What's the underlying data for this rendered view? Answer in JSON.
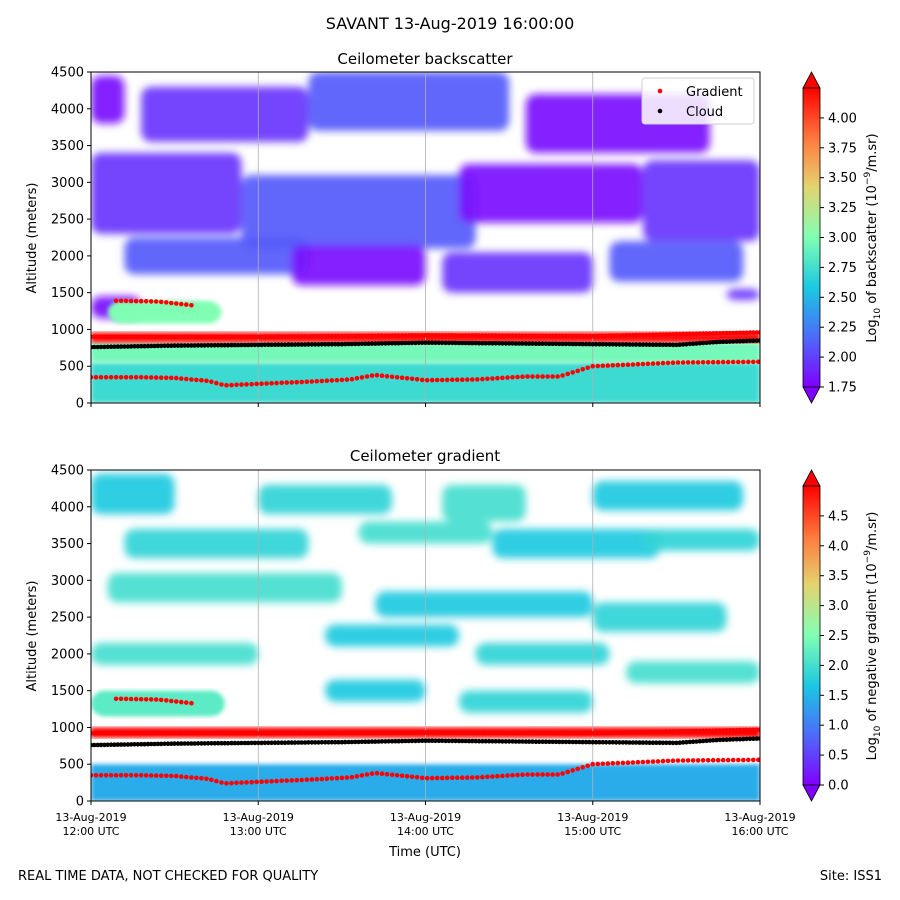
{
  "suptitle": "SAVANT 13-Aug-2019 16:00:00",
  "footer": {
    "quality_note": "REAL TIME DATA, NOT CHECKED FOR QUALITY",
    "site": "Site: ISS1"
  },
  "colors": {
    "gradient_marker": "#ff0000",
    "cloud_marker": "#000000",
    "no_data": "#ffffff",
    "grid": "#b0b0b0"
  },
  "chart_data": [
    {
      "type": "heatmap",
      "title": "Ceilometer backscatter",
      "xlabel": "",
      "ylabel": "Altitude (meters)",
      "ylim": [
        0,
        4500
      ],
      "y_ticks": [
        "0",
        "500",
        "1000",
        "1500",
        "2000",
        "2500",
        "3000",
        "3500",
        "4000",
        "4500"
      ],
      "x_range_utc": [
        "12:00",
        "16:00"
      ],
      "x_ticks": [],
      "grid": true,
      "colormap": "rainbow",
      "colorbar": {
        "label_prefix": "Log",
        "label_sub": "10",
        "label_mid": " of backscatter (10",
        "label_sup": "−9",
        "label_suffix": "/m.sr)",
        "range": [
          1.75,
          4.25
        ],
        "ticks": [
          "1.75",
          "2.00",
          "2.25",
          "2.50",
          "2.75",
          "3.00",
          "3.25",
          "3.50",
          "3.75",
          "4.00"
        ]
      },
      "legend": {
        "placement": "top-right",
        "entries": [
          {
            "name": "Gradient",
            "color": "#ff0000"
          },
          {
            "name": "Cloud",
            "color": "#000000"
          }
        ]
      },
      "layers": [
        {
          "name": "aerosol layer",
          "t": [
            0.0,
            4.0
          ],
          "alt": [
            0,
            550
          ],
          "value": 2.72
        },
        {
          "name": "boundary layer",
          "t": [
            0.0,
            4.0
          ],
          "alt": [
            550,
            820
          ],
          "value": 2.95
        },
        {
          "name": "mixed layer top",
          "t": [
            0.0,
            4.0
          ],
          "alt": [
            820,
            960
          ],
          "value": 4.2
        },
        {
          "name": "residual layer",
          "t": [
            0.1,
            0.78
          ],
          "alt": [
            1080,
            1390
          ],
          "value": 3.0
        }
      ],
      "haze_patches": [
        {
          "t": [
            0.0,
            0.2
          ],
          "alt": [
            3800,
            4450
          ]
        },
        {
          "t": [
            0.3,
            1.3
          ],
          "alt": [
            3550,
            4300
          ]
        },
        {
          "t": [
            1.3,
            2.5
          ],
          "alt": [
            3700,
            4500
          ]
        },
        {
          "t": [
            2.6,
            3.7
          ],
          "alt": [
            3400,
            4200
          ]
        },
        {
          "t": [
            0.0,
            0.9
          ],
          "alt": [
            2300,
            3400
          ]
        },
        {
          "t": [
            0.9,
            2.3
          ],
          "alt": [
            2100,
            3100
          ]
        },
        {
          "t": [
            2.2,
            3.3
          ],
          "alt": [
            2450,
            3250
          ]
        },
        {
          "t": [
            3.3,
            4.0
          ],
          "alt": [
            2200,
            3300
          ]
        },
        {
          "t": [
            0.2,
            1.3
          ],
          "alt": [
            1750,
            2250
          ]
        },
        {
          "t": [
            1.2,
            2.0
          ],
          "alt": [
            1600,
            2150
          ]
        },
        {
          "t": [
            2.1,
            3.0
          ],
          "alt": [
            1500,
            2050
          ]
        },
        {
          "t": [
            3.1,
            3.9
          ],
          "alt": [
            1650,
            2200
          ]
        },
        {
          "t": [
            0.0,
            0.3
          ],
          "alt": [
            1150,
            1450
          ]
        },
        {
          "t": [
            3.8,
            4.0
          ],
          "alt": [
            1400,
            1550
          ]
        }
      ],
      "haze_value": 1.8,
      "cloud_base": {
        "t": [
          0.0,
          0.5,
          1.0,
          1.5,
          2.0,
          2.5,
          3.0,
          3.5,
          3.75,
          4.0
        ],
        "alt": [
          760,
          780,
          790,
          800,
          820,
          810,
          800,
          790,
          830,
          850
        ]
      },
      "gradient_upper": {
        "t": [
          0.0,
          1.0,
          2.0,
          3.0,
          4.0
        ],
        "alt": [
          900,
          900,
          920,
          910,
          960
        ]
      },
      "gradient_lower": {
        "t": [
          0.0,
          0.3,
          0.5,
          0.7,
          0.8,
          1.0,
          1.3,
          1.55,
          1.7,
          2.0,
          2.3,
          2.6,
          2.8,
          3.0,
          3.5,
          4.0
        ],
        "alt": [
          350,
          350,
          340,
          300,
          240,
          260,
          290,
          320,
          380,
          310,
          320,
          360,
          360,
          500,
          550,
          560
        ]
      },
      "gradient_residual": {
        "t": [
          0.15,
          0.4,
          0.6
        ],
        "alt": [
          1390,
          1380,
          1330
        ]
      }
    },
    {
      "type": "heatmap",
      "title": "Ceilometer gradient",
      "xlabel": "Time (UTC)",
      "ylabel": "Altitude (meters)",
      "ylim": [
        0,
        4500
      ],
      "y_ticks": [
        "0",
        "500",
        "1000",
        "1500",
        "2000",
        "2500",
        "3000",
        "3500",
        "4000",
        "4500"
      ],
      "x_range_utc": [
        "12:00",
        "16:00"
      ],
      "x_ticks": [
        {
          "date": "13-Aug-2019",
          "time": "12:00 UTC",
          "t": 0
        },
        {
          "date": "13-Aug-2019",
          "time": "13:00 UTC",
          "t": 1
        },
        {
          "date": "13-Aug-2019",
          "time": "14:00 UTC",
          "t": 2
        },
        {
          "date": "13-Aug-2019",
          "time": "15:00 UTC",
          "t": 3
        },
        {
          "date": "13-Aug-2019",
          "time": "16:00 UTC",
          "t": 4
        }
      ],
      "grid": true,
      "colormap": "rainbow",
      "colorbar": {
        "label_prefix": "Log",
        "label_sub": "10",
        "label_mid": " of negative gradient (10",
        "label_sup": "−9",
        "label_suffix": "/m.sr)",
        "range": [
          0.0,
          5.0
        ],
        "ticks": [
          "0.0",
          "0.5",
          "1.0",
          "1.5",
          "2.0",
          "2.5",
          "3.0",
          "3.5",
          "4.0",
          "4.5"
        ]
      },
      "layers": [
        {
          "name": "aerosol layer",
          "t": [
            0.0,
            4.0
          ],
          "alt": [
            0,
            500
          ],
          "value": 1.4
        },
        {
          "name": "mixed layer top",
          "t": [
            0.0,
            4.0
          ],
          "alt": [
            860,
            1000
          ],
          "value": 5.0
        },
        {
          "name": "residual layer",
          "t": [
            0.0,
            0.8
          ],
          "alt": [
            1150,
            1500
          ],
          "value": 2.2
        }
      ],
      "haze_patches": [
        {
          "t": [
            0.0,
            0.5
          ],
          "alt": [
            3900,
            4450
          ]
        },
        {
          "t": [
            1.0,
            1.8
          ],
          "alt": [
            3900,
            4300
          ]
        },
        {
          "t": [
            2.1,
            2.6
          ],
          "alt": [
            3800,
            4300
          ]
        },
        {
          "t": [
            3.0,
            3.9
          ],
          "alt": [
            3950,
            4350
          ]
        },
        {
          "t": [
            0.2,
            1.3
          ],
          "alt": [
            3300,
            3700
          ]
        },
        {
          "t": [
            1.6,
            2.4
          ],
          "alt": [
            3500,
            3800
          ]
        },
        {
          "t": [
            2.4,
            3.4
          ],
          "alt": [
            3300,
            3700
          ]
        },
        {
          "t": [
            3.3,
            4.0
          ],
          "alt": [
            3400,
            3700
          ]
        },
        {
          "t": [
            0.1,
            1.5
          ],
          "alt": [
            2700,
            3100
          ]
        },
        {
          "t": [
            1.7,
            3.0
          ],
          "alt": [
            2500,
            2850
          ]
        },
        {
          "t": [
            3.0,
            3.8
          ],
          "alt": [
            2300,
            2700
          ]
        },
        {
          "t": [
            0.0,
            1.0
          ],
          "alt": [
            1850,
            2150
          ]
        },
        {
          "t": [
            1.4,
            2.2
          ],
          "alt": [
            2100,
            2400
          ]
        },
        {
          "t": [
            2.3,
            3.1
          ],
          "alt": [
            1850,
            2150
          ]
        },
        {
          "t": [
            3.2,
            4.0
          ],
          "alt": [
            1600,
            1900
          ]
        },
        {
          "t": [
            1.4,
            2.0
          ],
          "alt": [
            1350,
            1650
          ]
        },
        {
          "t": [
            2.2,
            3.0
          ],
          "alt": [
            1200,
            1500
          ]
        }
      ],
      "haze_value": 1.7,
      "cloud_base": {
        "t": [
          0.0,
          0.5,
          1.0,
          1.5,
          2.0,
          2.5,
          3.0,
          3.5,
          3.75,
          4.0
        ],
        "alt": [
          760,
          780,
          790,
          800,
          820,
          810,
          800,
          790,
          830,
          850
        ]
      },
      "gradient_upper": {
        "t": [
          0.0,
          1.0,
          2.0,
          3.0,
          4.0
        ],
        "alt": [
          920,
          920,
          930,
          920,
          970
        ]
      },
      "gradient_lower": {
        "t": [
          0.0,
          0.3,
          0.5,
          0.7,
          0.8,
          1.0,
          1.3,
          1.55,
          1.7,
          2.0,
          2.3,
          2.6,
          2.8,
          3.0,
          3.5,
          4.0
        ],
        "alt": [
          350,
          350,
          340,
          300,
          240,
          260,
          290,
          320,
          380,
          310,
          320,
          360,
          360,
          500,
          550,
          560
        ]
      },
      "gradient_residual": {
        "t": [
          0.15,
          0.4,
          0.6
        ],
        "alt": [
          1390,
          1380,
          1330
        ]
      }
    }
  ]
}
